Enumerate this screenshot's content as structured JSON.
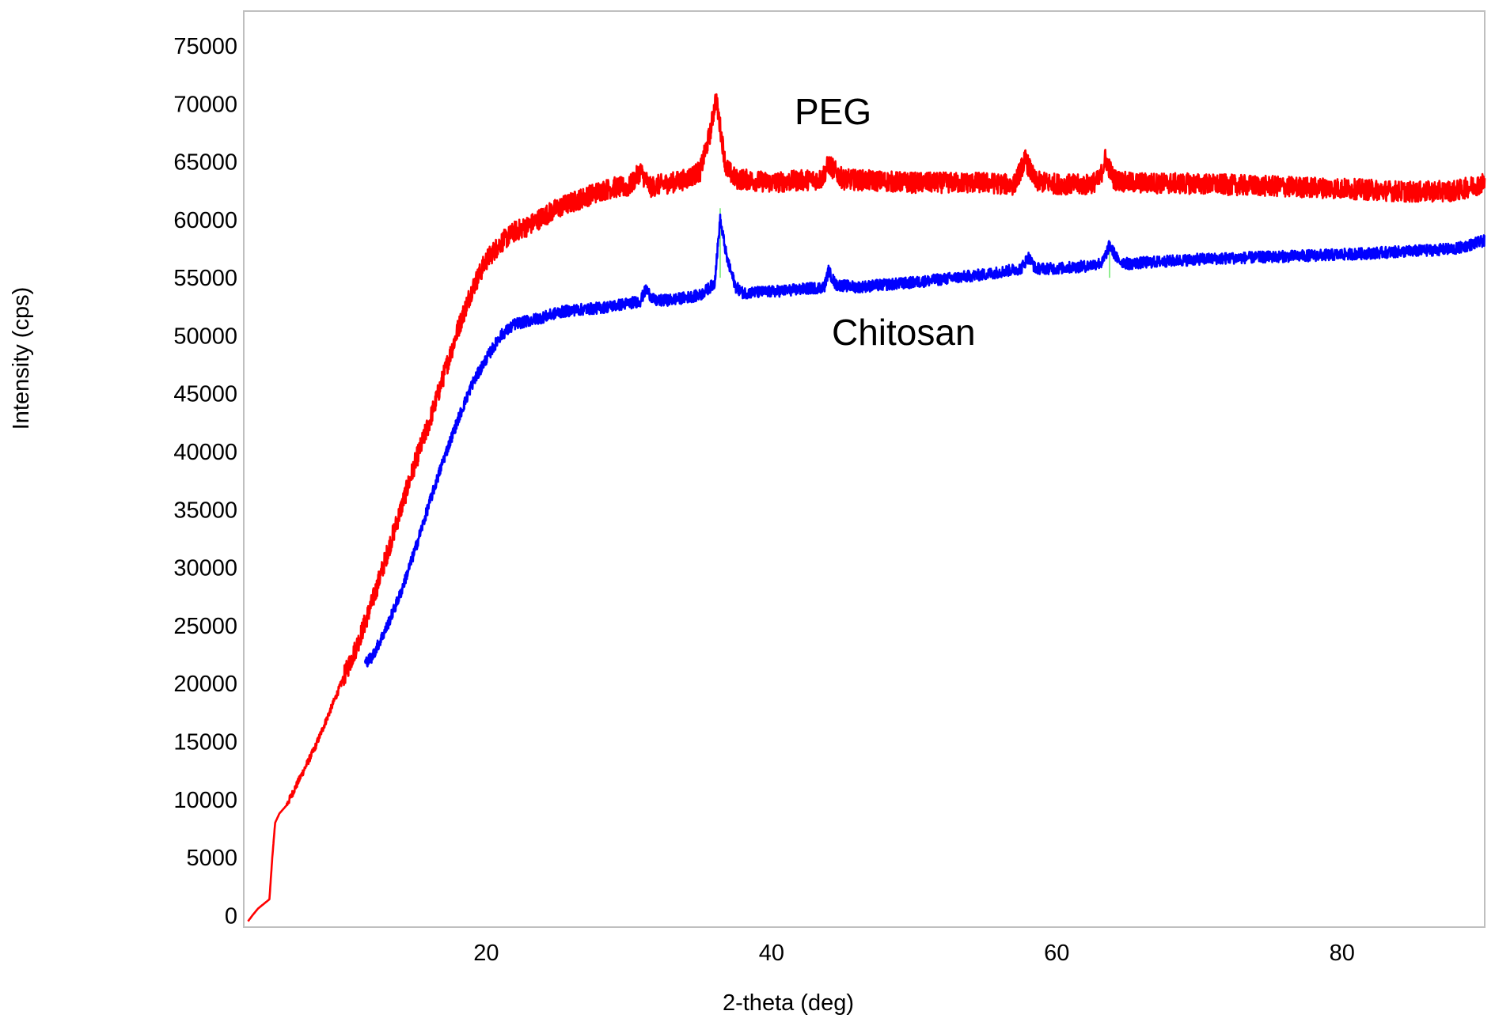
{
  "chart_data": {
    "type": "line",
    "title": "",
    "xlabel": "2-theta (deg)",
    "ylabel": "Intensity (cps)",
    "xlim": [
      3,
      90
    ],
    "ylim": [
      -1000,
      78000
    ],
    "x_ticks": [
      20,
      40,
      60,
      80
    ],
    "y_ticks": [
      0,
      5000,
      10000,
      15000,
      20000,
      25000,
      30000,
      35000,
      40000,
      45000,
      50000,
      55000,
      60000,
      65000,
      70000,
      75000
    ],
    "grid": false,
    "colors": {
      "PEG": "#ff0000",
      "Chitosan": "#0000ff",
      "marker_lines": "#90ee90",
      "frame": "#bfbfbf"
    },
    "series": [
      {
        "name": "PEG",
        "label": "PEG",
        "color": "#ff0000",
        "noise": 900,
        "x": [
          3.3,
          3.6,
          4.0,
          4.4,
          4.8,
          5.0,
          5.2,
          5.5,
          6,
          7,
          8,
          9,
          10,
          11,
          12,
          13,
          14,
          15,
          16,
          17,
          18,
          19,
          20,
          21,
          22,
          23,
          24,
          25,
          26,
          27,
          28,
          29,
          30,
          30.8,
          31.5,
          32,
          33,
          34,
          35,
          35.7,
          36.1,
          36.4,
          36.8,
          37.5,
          38,
          40,
          42,
          43.5,
          44,
          45,
          50,
          55,
          57,
          57.8,
          58.5,
          60,
          62,
          63.0,
          63.4,
          64.0,
          65,
          70,
          75,
          80,
          85,
          88,
          90
        ],
        "values": [
          -500,
          0,
          600,
          1000,
          1400,
          5000,
          8000,
          8800,
          9500,
          12000,
          14500,
          17500,
          20500,
          23500,
          27000,
          31000,
          35000,
          39000,
          42500,
          46500,
          50500,
          54000,
          56500,
          58000,
          59000,
          59500,
          60300,
          61000,
          61500,
          62000,
          62500,
          62800,
          62800,
          64200,
          62800,
          63000,
          63200,
          63500,
          64200,
          67500,
          70500,
          68000,
          64500,
          63500,
          63500,
          63200,
          63400,
          63500,
          64800,
          63500,
          63200,
          63200,
          63000,
          65200,
          63300,
          63100,
          63000,
          63400,
          65300,
          63500,
          63200,
          63100,
          62900,
          62700,
          62400,
          62500,
          63200
        ]
      },
      {
        "name": "Chitosan",
        "label": "Chitosan",
        "color": "#0000ff",
        "noise": 500,
        "x": [
          11.5,
          12,
          13,
          14,
          15,
          16,
          17,
          18,
          19,
          20,
          21,
          22,
          23,
          24,
          25,
          26,
          28,
          30,
          30.8,
          31.2,
          31.8,
          33,
          35,
          36.0,
          36.4,
          36.9,
          37.5,
          38,
          40,
          42,
          43.7,
          44,
          44.5,
          46,
          50,
          55,
          57.5,
          58,
          58.5,
          60,
          62,
          63.2,
          63.7,
          64.3,
          65,
          66,
          70,
          75,
          80,
          85,
          88,
          90
        ],
        "values": [
          21800,
          22300,
          24800,
          27800,
          31500,
          35500,
          39300,
          42700,
          45800,
          48000,
          50000,
          51000,
          51300,
          51600,
          52000,
          52200,
          52400,
          52800,
          53000,
          54000,
          53000,
          53100,
          53500,
          54500,
          60000,
          56500,
          54200,
          53700,
          53800,
          54000,
          54200,
          55600,
          54400,
          54200,
          54600,
          55300,
          55800,
          56800,
          55800,
          55800,
          56000,
          56300,
          57800,
          56500,
          56200,
          56300,
          56600,
          56800,
          57000,
          57300,
          57500,
          58200
        ]
      }
    ],
    "marker_lines": [
      {
        "x": 36.4,
        "from": 55000,
        "to": 61000
      },
      {
        "x": 63.7,
        "from": 55000,
        "to": 57500
      }
    ]
  }
}
